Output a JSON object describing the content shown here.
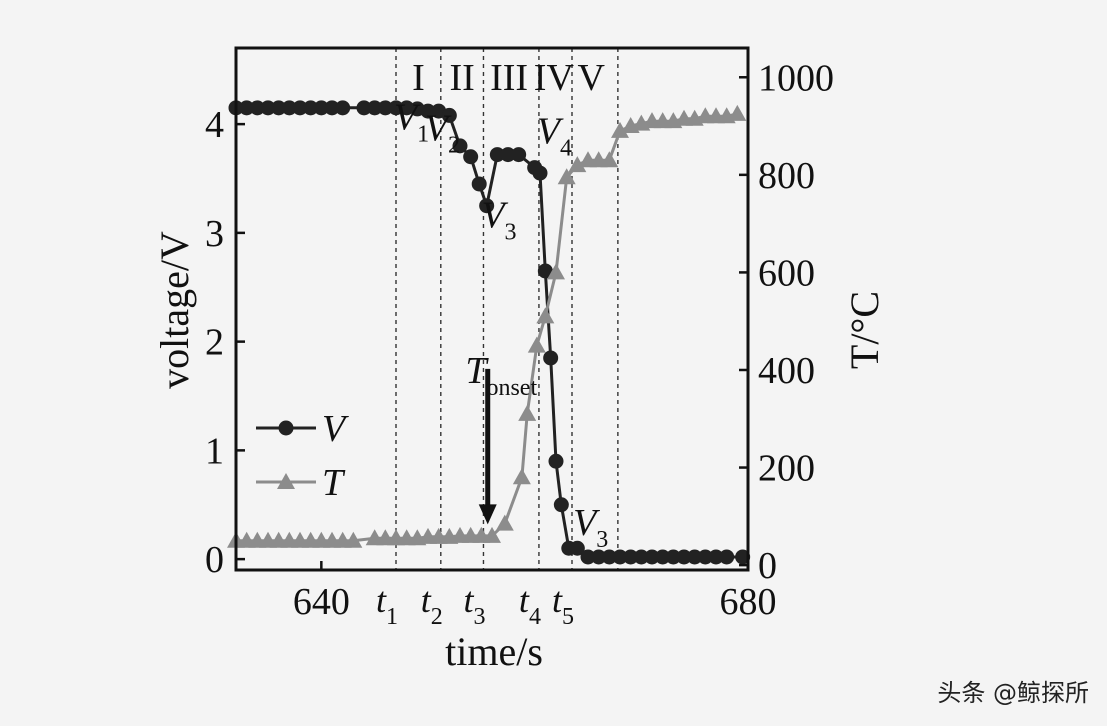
{
  "watermark": "头条 @鲸探所",
  "colors": {
    "background": "#f4f4f4",
    "voltage_series": "#222222",
    "temperature_series": "#8c8c8c",
    "axis": "#111111"
  },
  "chart_data": {
    "type": "line",
    "xlabel": "time/s",
    "ylabel_left": "voltage/V",
    "ylabel_right": "T/°C",
    "xlim": [
      632,
      680
    ],
    "ylim_left": [
      -0.1,
      4.7
    ],
    "ylim_right": [
      -10,
      1060
    ],
    "x_ticks": [
      {
        "value": 640,
        "label": "640"
      },
      {
        "value": 680,
        "label": "680"
      }
    ],
    "y_left_ticks": [
      0,
      1,
      2,
      3,
      4
    ],
    "y_right_ticks": [
      0,
      200,
      400,
      600,
      800,
      1000
    ],
    "markers": [
      {
        "label": "t",
        "sub": "1",
        "x": 647.0
      },
      {
        "label": "t",
        "sub": "2",
        "x": 651.2
      },
      {
        "label": "t",
        "sub": "3",
        "x": 655.2
      },
      {
        "label": "t",
        "sub": "4",
        "x": 660.4
      },
      {
        "label": "t",
        "sub": "5",
        "x": 663.5
      },
      {
        "label": "",
        "sub": "",
        "x": 667.8
      }
    ],
    "regions": [
      {
        "label": "I",
        "x": 649.1
      },
      {
        "label": "II",
        "x": 653.2
      },
      {
        "label": "III",
        "x": 657.6
      },
      {
        "label": "IV",
        "x": 661.8
      },
      {
        "label": "V",
        "x": 665.3
      }
    ],
    "annotations": [
      {
        "label": "V",
        "sub": "1",
        "x": 646.8,
        "y": 3.95,
        "axis": "left"
      },
      {
        "label": "V",
        "sub": "2",
        "x": 649.7,
        "y": 3.85,
        "axis": "left"
      },
      {
        "label": "V",
        "sub": "3",
        "x": 655.0,
        "y": 3.05,
        "axis": "left"
      },
      {
        "label": "V",
        "sub": "4",
        "x": 660.2,
        "y": 3.82,
        "axis": "left"
      },
      {
        "label": "V",
        "sub": "3",
        "x": 663.6,
        "y": 0.22,
        "axis": "left"
      },
      {
        "label": "T",
        "sub": "onset",
        "x": 653.5,
        "y": 1.62,
        "axis": "left"
      }
    ],
    "onset_arrow": {
      "x": 655.6,
      "y_from": 1.75,
      "y_to": 0.32
    },
    "legend": {
      "placement": "lower-left",
      "entries": [
        {
          "series": "V",
          "label": "V"
        },
        {
          "series": "T",
          "label": "T"
        }
      ]
    },
    "series": [
      {
        "name": "V",
        "marker": "circle",
        "axis": "left",
        "x": [
          632,
          633,
          634,
          635,
          636,
          637,
          638,
          639,
          640,
          641,
          642,
          644,
          645,
          646,
          647,
          648,
          649,
          650,
          651,
          652,
          653,
          654,
          654.8,
          655.5,
          656.5,
          657.5,
          658.5,
          660.0,
          660.5,
          661.0,
          661.5,
          662.0,
          662.5,
          663.2,
          664.0,
          665.0,
          666.0,
          667.0,
          668.0,
          669.0,
          670.0,
          671.0,
          672.0,
          673.0,
          674.0,
          675.0,
          676.0,
          677.0,
          678.0,
          679.5
        ],
        "y": [
          4.15,
          4.15,
          4.15,
          4.15,
          4.15,
          4.15,
          4.15,
          4.15,
          4.15,
          4.15,
          4.15,
          4.15,
          4.15,
          4.15,
          4.15,
          4.15,
          4.14,
          4.12,
          4.12,
          4.08,
          3.8,
          3.7,
          3.45,
          3.25,
          3.72,
          3.72,
          3.72,
          3.6,
          3.55,
          2.65,
          1.85,
          0.9,
          0.5,
          0.1,
          0.1,
          0.02,
          0.02,
          0.02,
          0.02,
          0.02,
          0.02,
          0.02,
          0.02,
          0.02,
          0.02,
          0.02,
          0.02,
          0.02,
          0.02,
          0.02
        ]
      },
      {
        "name": "T",
        "marker": "triangle",
        "axis": "right",
        "x": [
          632,
          633,
          634,
          635,
          636,
          637,
          638,
          639,
          640,
          641,
          642,
          643,
          645,
          646,
          647,
          648,
          649,
          650,
          651,
          652,
          653,
          654,
          655,
          656,
          657.2,
          658.8,
          659.3,
          660.2,
          661.0,
          662.0,
          663.0,
          664.0,
          665.0,
          666.0,
          667.0,
          668.0,
          669.0,
          670.0,
          671.0,
          672.0,
          673.0,
          674.0,
          675.0,
          676.0,
          677.0,
          678.0,
          679.0
        ],
        "y": [
          50,
          50,
          50,
          50,
          50,
          50,
          50,
          50,
          50,
          50,
          50,
          50,
          55,
          55,
          55,
          55,
          55,
          58,
          58,
          58,
          60,
          60,
          60,
          60,
          85,
          180,
          310,
          450,
          510,
          600,
          795,
          820,
          830,
          830,
          830,
          890,
          900,
          905,
          910,
          910,
          910,
          915,
          915,
          920,
          920,
          920,
          925
        ]
      }
    ]
  }
}
